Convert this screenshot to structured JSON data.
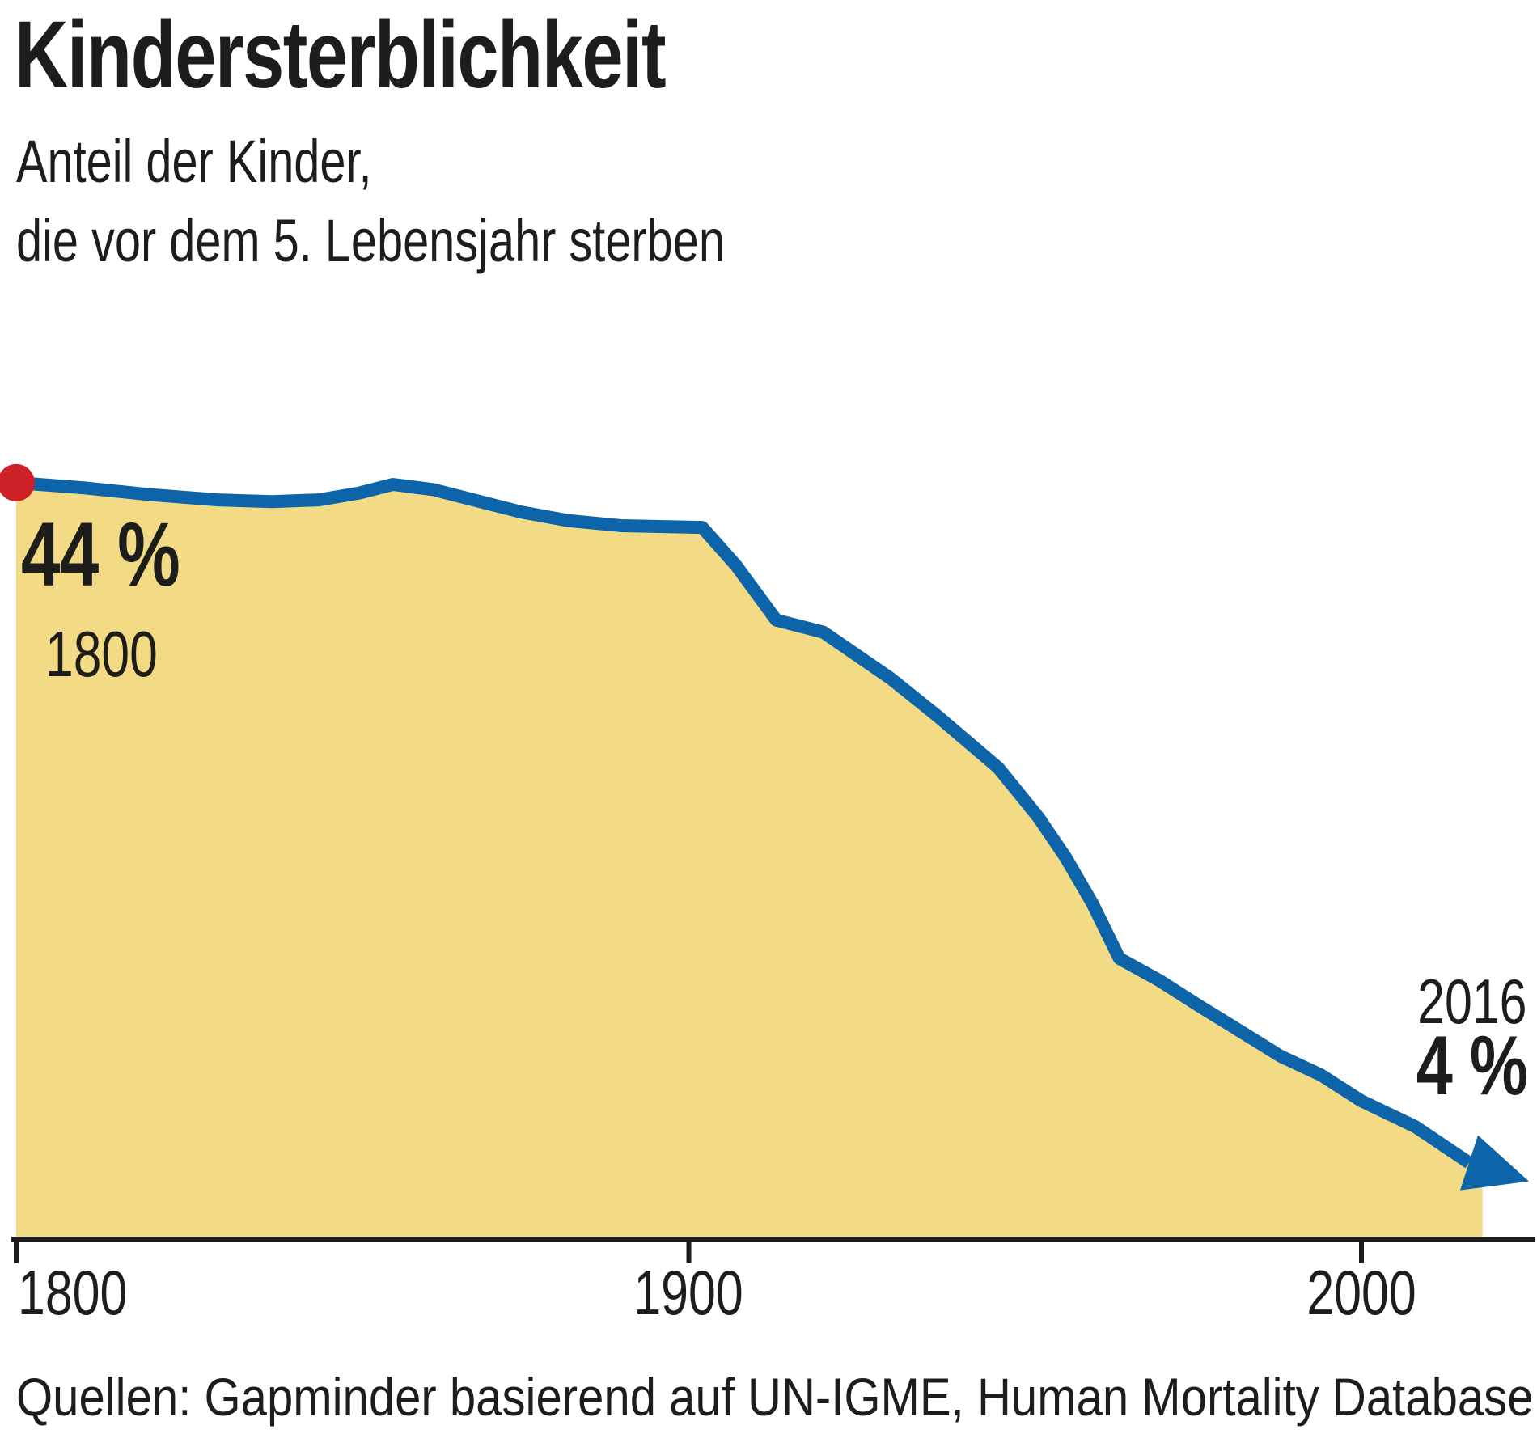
{
  "header": {
    "title": "Kindersterblichkeit",
    "subtitle_line1": "Anteil der Kinder,",
    "subtitle_line2": "die vor dem 5. Lebensjahr sterben"
  },
  "annotations": {
    "start_value": "44 %",
    "start_year": "1800",
    "end_year": "2016",
    "end_value": "4 %"
  },
  "axis": {
    "tick_labels": [
      "1800",
      "1900",
      "2000"
    ]
  },
  "source": "Quellen: Gapminder basierend auf UN-IGME, Human Mortality Database",
  "colors": {
    "area_fill": "#f3db85",
    "line": "#0e64a8",
    "start_dot": "#ce2127",
    "axis": "#1d1d1b",
    "text": "#1d1d1b",
    "background": "#ffffff"
  },
  "chart_data": {
    "type": "area",
    "title": "Kindersterblichkeit",
    "subtitle": "Anteil der Kinder, die vor dem 5. Lebensjahr sterben",
    "xlabel": "",
    "ylabel": "",
    "x_range": [
      1800,
      2021
    ],
    "y_range": [
      0,
      46
    ],
    "x_ticks": [
      1800,
      1900,
      2000
    ],
    "grid": false,
    "legend": "none",
    "annotated_points": [
      {
        "year": 1800,
        "value_pct": 44,
        "label": "44 %"
      },
      {
        "year": 2016,
        "value_pct": 4,
        "label": "4 %"
      }
    ],
    "points": [
      [
        1800,
        44.0
      ],
      [
        1810,
        43.7
      ],
      [
        1820,
        43.3
      ],
      [
        1830,
        43.0
      ],
      [
        1838,
        42.9
      ],
      [
        1845,
        43.0
      ],
      [
        1851,
        43.4
      ],
      [
        1856,
        43.9
      ],
      [
        1862,
        43.6
      ],
      [
        1868,
        43.0
      ],
      [
        1875,
        42.3
      ],
      [
        1882,
        41.8
      ],
      [
        1890,
        41.5
      ],
      [
        1902,
        41.4
      ],
      [
        1907,
        39.2
      ],
      [
        1913,
        36.0
      ],
      [
        1920,
        35.3
      ],
      [
        1930,
        32.6
      ],
      [
        1937,
        30.4
      ],
      [
        1946,
        27.4
      ],
      [
        1952,
        24.5
      ],
      [
        1956,
        22.2
      ],
      [
        1960,
        19.5
      ],
      [
        1964,
        16.3
      ],
      [
        1970,
        15.0
      ],
      [
        1976,
        13.5
      ],
      [
        1981,
        12.3
      ],
      [
        1988,
        10.6
      ],
      [
        1994,
        9.5
      ],
      [
        2000,
        8.0
      ],
      [
        2008,
        6.5
      ],
      [
        2016,
        4.4
      ]
    ]
  }
}
